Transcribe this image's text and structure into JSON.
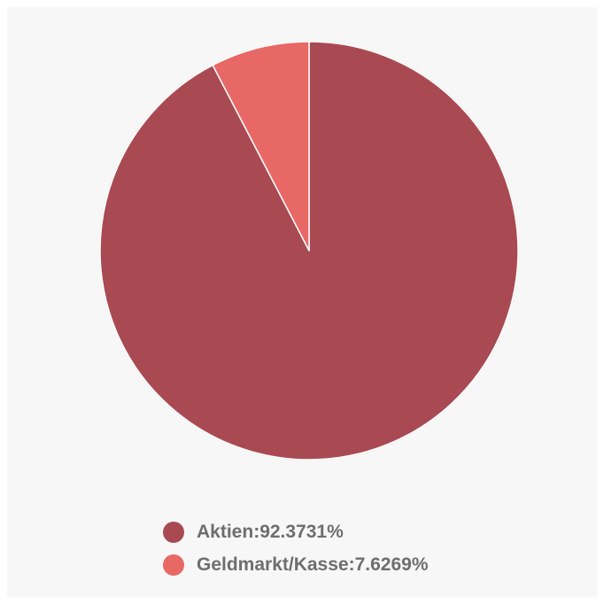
{
  "chart_data": {
    "type": "pie",
    "slices": [
      {
        "label": "Aktien",
        "value": 92.3731,
        "display_value": "92.3731",
        "color": "#a94a53"
      },
      {
        "label": "Geldmarkt/Kasse",
        "value": 7.6269,
        "display_value": "7.6269",
        "color": "#e86866"
      }
    ],
    "unit": "%",
    "legend": {
      "position": "bottom"
    },
    "start": "top",
    "direction": "clockwise",
    "background_color": "#f7f7f7",
    "separator_color": "#ffffff",
    "legend_text_color": "#6e6e6e"
  }
}
